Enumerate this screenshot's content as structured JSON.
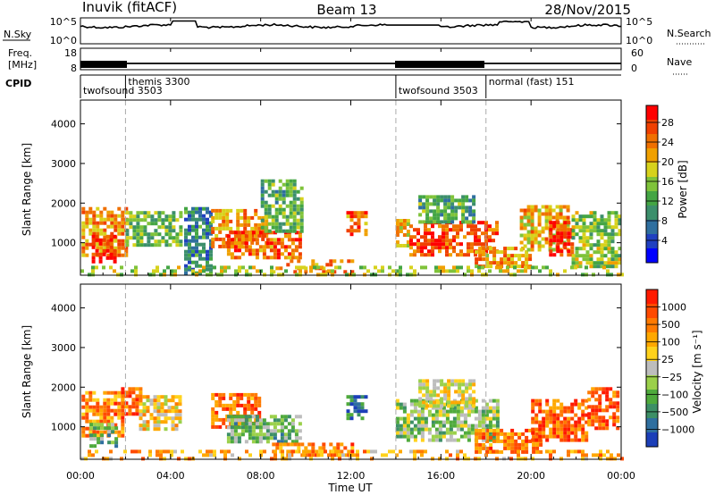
{
  "header": {
    "station": "Inuvik (fitACF)",
    "beam": "Beam 13",
    "date": "28/Nov/2015"
  },
  "top_panels": {
    "nsky_label": "N.Sky",
    "nsky_ticks": [
      "10^5",
      "10^0"
    ],
    "nsearch_label": "N.Search",
    "nsearch_ticks": [
      "10^5",
      "10^0"
    ],
    "freq_label_line1": "Freq.",
    "freq_label_line2": "[MHz]",
    "freq_ticks": [
      "18",
      "8"
    ],
    "nave_label": "Nave",
    "nave_ticks": [
      "60",
      "0"
    ],
    "cpid_label": "CPID",
    "cpid_segments": [
      {
        "label": "twofsound 3503",
        "start_hour": 0,
        "end_hour": 2,
        "row": 2
      },
      {
        "label": "themis 3300",
        "start_hour": 2,
        "end_hour": 14,
        "row": 1
      },
      {
        "label": "twofsound 3503",
        "start_hour": 14,
        "end_hour": 18,
        "row": 2
      },
      {
        "label": "normal (fast) 151",
        "start_hour": 18,
        "end_hour": 24,
        "row": 1
      }
    ]
  },
  "time_axis": {
    "xlabel": "Time UT",
    "ticks": [
      "00:00",
      "04:00",
      "08:00",
      "12:00",
      "16:00",
      "20:00",
      "00:00"
    ],
    "xlim_hours": [
      0,
      24
    ]
  },
  "chart_data": [
    {
      "type": "heatmap",
      "panel": "power",
      "ylabel": "Slant Range [km]",
      "yticks": [
        "1000",
        "2000",
        "3000",
        "4000"
      ],
      "ylim": [
        180,
        4600
      ],
      "colorbar_label": "Power [dB]",
      "colorbar_ticks": [
        "4",
        "8",
        "12",
        "16",
        "20",
        "24",
        "28"
      ],
      "colorbar_colors": [
        "#0000ff",
        "#2040c0",
        "#2f6f9f",
        "#3c8f6c",
        "#44a544",
        "#7fc33a",
        "#d7d21c",
        "#f0a000",
        "#f07000",
        "#f04000",
        "#ff0000"
      ],
      "regions": [
        {
          "t0": 0.05,
          "t1": 2.0,
          "r0": 700,
          "r1": 1900,
          "v": 0.72
        },
        {
          "t0": 0.5,
          "t1": 1.6,
          "r0": 550,
          "r1": 1200,
          "v": 0.9
        },
        {
          "t0": 2.0,
          "t1": 4.4,
          "r0": 900,
          "r1": 1800,
          "v": 0.45
        },
        {
          "t0": 4.6,
          "t1": 5.8,
          "r0": 250,
          "r1": 1900,
          "v": 0.3
        },
        {
          "t0": 5.8,
          "t1": 8.2,
          "r0": 900,
          "r1": 1850,
          "v": 0.72
        },
        {
          "t0": 6.5,
          "t1": 9.8,
          "r0": 600,
          "r1": 1300,
          "v": 0.8
        },
        {
          "t0": 8.0,
          "t1": 9.8,
          "r0": 1300,
          "r1": 2600,
          "v": 0.42
        },
        {
          "t0": 8.5,
          "t1": 12.0,
          "r0": 300,
          "r1": 580,
          "v": 0.78
        },
        {
          "t0": 11.8,
          "t1": 12.6,
          "r0": 1200,
          "r1": 1800,
          "v": 0.8
        },
        {
          "t0": 14.0,
          "t1": 14.6,
          "r0": 900,
          "r1": 1600,
          "v": 0.62
        },
        {
          "t0": 14.6,
          "t1": 18.5,
          "r0": 700,
          "r1": 1550,
          "v": 0.82
        },
        {
          "t0": 15.0,
          "t1": 17.5,
          "r0": 1500,
          "r1": 2200,
          "v": 0.38
        },
        {
          "t0": 17.5,
          "t1": 20.0,
          "r0": 420,
          "r1": 900,
          "v": 0.7
        },
        {
          "t0": 19.5,
          "t1": 21.7,
          "r0": 850,
          "r1": 1950,
          "v": 0.66
        },
        {
          "t0": 20.8,
          "t1": 21.9,
          "r0": 650,
          "r1": 1550,
          "v": 0.9
        },
        {
          "t0": 21.8,
          "t1": 23.9,
          "r0": 400,
          "r1": 1800,
          "v": 0.5
        },
        {
          "t0": 0.0,
          "t1": 24.0,
          "r0": 180,
          "r1": 420,
          "v": 0.55
        }
      ]
    },
    {
      "type": "heatmap",
      "panel": "velocity",
      "ylabel": "Slant Range [km]",
      "yticks": [
        "1000",
        "2000",
        "3000",
        "4000"
      ],
      "ylim": [
        180,
        4600
      ],
      "colorbar_label": "Velocity [m s⁻¹]",
      "colorbar_ticks": [
        "1000",
        "500",
        "100",
        "25",
        "−25",
        "−100",
        "−500",
        "−1000"
      ],
      "colorbar_colors": [
        "#1c3fb8",
        "#2f6f9f",
        "#3d8f66",
        "#4faa3c",
        "#9bd04a",
        "#bdbdbd",
        "#ffd21c",
        "#ffa800",
        "#ff7a00",
        "#ff4a00",
        "#ff1a00"
      ],
      "regions": [
        {
          "t0": 0.05,
          "t1": 1.8,
          "r0": 750,
          "r1": 1900,
          "v": 0.75
        },
        {
          "t0": 0.4,
          "t1": 1.6,
          "r0": 550,
          "r1": 1100,
          "v": 0.32
        },
        {
          "t0": 1.8,
          "t1": 2.6,
          "r0": 1300,
          "r1": 2000,
          "v": 0.85
        },
        {
          "t0": 2.6,
          "t1": 4.4,
          "r0": 900,
          "r1": 1800,
          "v": 0.6
        },
        {
          "t0": 5.8,
          "t1": 8.0,
          "r0": 1000,
          "r1": 1850,
          "v": 0.8
        },
        {
          "t0": 6.5,
          "t1": 9.8,
          "r0": 600,
          "r1": 1300,
          "v": 0.35
        },
        {
          "t0": 8.5,
          "t1": 12.0,
          "r0": 280,
          "r1": 600,
          "v": 0.76
        },
        {
          "t0": 11.8,
          "t1": 12.6,
          "r0": 1200,
          "r1": 1800,
          "v": 0.2
        },
        {
          "t0": 14.0,
          "t1": 18.5,
          "r0": 700,
          "r1": 1700,
          "v": 0.4
        },
        {
          "t0": 15.0,
          "t1": 17.5,
          "r0": 1500,
          "r1": 2200,
          "v": 0.55
        },
        {
          "t0": 17.5,
          "t1": 20.5,
          "r0": 400,
          "r1": 950,
          "v": 0.78
        },
        {
          "t0": 20.0,
          "t1": 22.5,
          "r0": 700,
          "r1": 1700,
          "v": 0.82
        },
        {
          "t0": 22.5,
          "t1": 23.9,
          "r0": 1000,
          "r1": 2000,
          "v": 0.85
        },
        {
          "t0": 0.0,
          "t1": 24.0,
          "r0": 180,
          "r1": 420,
          "v": 0.68
        }
      ]
    }
  ]
}
